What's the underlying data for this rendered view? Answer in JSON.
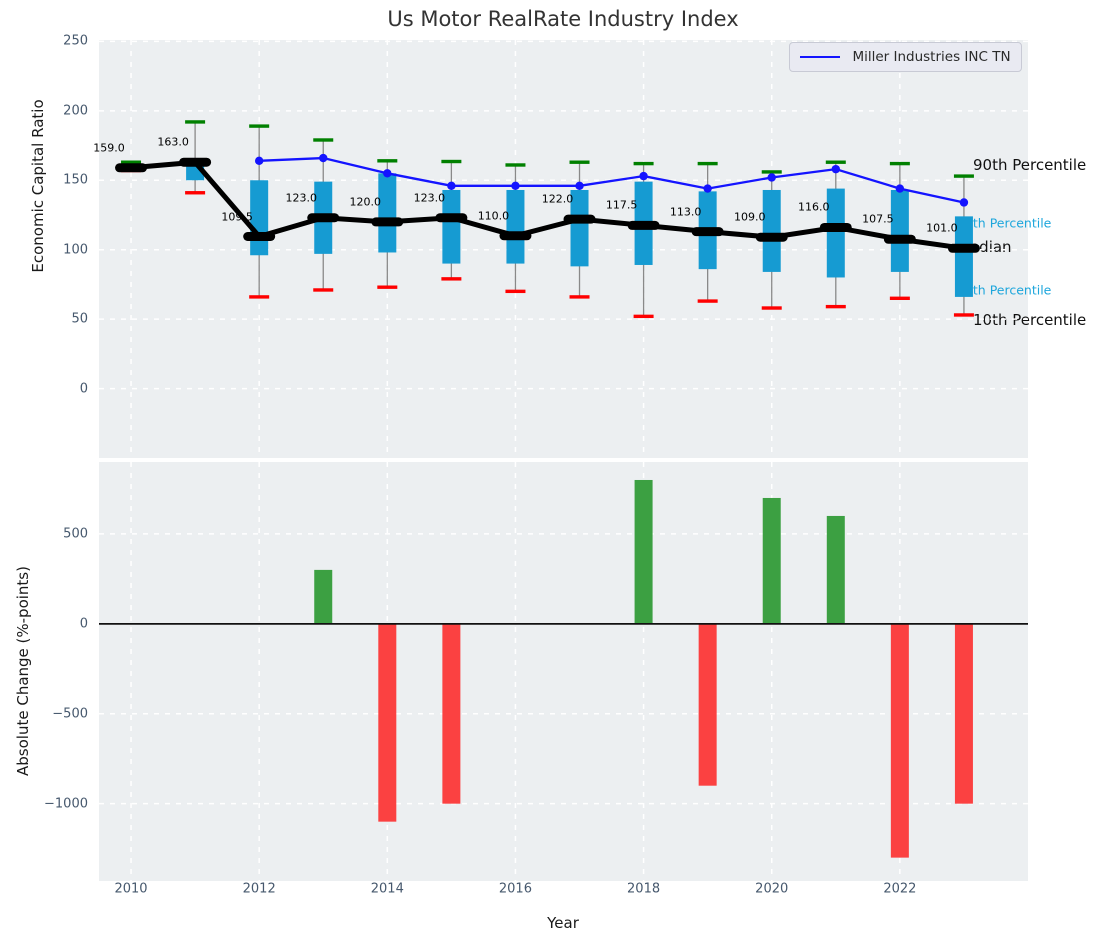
{
  "title": "Us Motor RealRate Industry Index",
  "legend": {
    "label": "Miller Industries INC TN"
  },
  "colors": {
    "plot_bg": "#eceff1",
    "grid": "#ffffff",
    "tick_label": "#46586d",
    "title_text": "#333333",
    "axis_label_text": "#1a1a1a",
    "box_fill": "#169bd2",
    "whisker": "#898989",
    "cap_90th": "#008000",
    "cap_10th": "#ff0000",
    "median_line": "#000000",
    "company_line": "#1414ff",
    "bar_positive": "#3ca042",
    "bar_negative": "#fb4141",
    "accent_label": "#1da6dc",
    "dark_label": "#111111",
    "zero_line": "#111111",
    "legend_bg": "#e9eaf2",
    "legend_border": "#c8cad5"
  },
  "chart_data": [
    {
      "type": "boxplot",
      "title": "Us Motor RealRate Industry Index",
      "ylabel": "Economic Capital Ratio",
      "years": [
        2010,
        2011,
        2012,
        2013,
        2014,
        2015,
        2016,
        2017,
        2018,
        2019,
        2020,
        2021,
        2022,
        2023
      ],
      "p10": [
        157,
        141,
        66,
        71,
        73,
        79,
        70,
        66,
        52,
        63,
        58,
        59,
        65,
        53
      ],
      "p25": [
        157.5,
        150,
        96,
        97,
        98,
        90,
        90,
        88,
        89,
        86,
        84,
        80,
        84,
        66
      ],
      "median": [
        159.0,
        163.0,
        109.5,
        123.0,
        120.0,
        123.0,
        110.0,
        122.0,
        117.5,
        113.0,
        109.0,
        116.0,
        107.5,
        101.0
      ],
      "p75": [
        160.5,
        164,
        150,
        149,
        155,
        143,
        143,
        143,
        149,
        142,
        143,
        144,
        143,
        124
      ],
      "p90": [
        163,
        192,
        189,
        179,
        164,
        163.5,
        161,
        163,
        162,
        162,
        156,
        163,
        162,
        153
      ],
      "median_labels": [
        "159.0",
        "163.0",
        "109.5",
        "123.0",
        "120.0",
        "123.0",
        "110.0",
        "122.0",
        "117.5",
        "113.0",
        "109.0",
        "116.0",
        "107.5",
        "101.0"
      ],
      "company": {
        "name": "Miller Industries INC TN",
        "years": [
          2012,
          2013,
          2014,
          2015,
          2016,
          2017,
          2018,
          2019,
          2020,
          2021,
          2022,
          2023
        ],
        "values": [
          164,
          166,
          155,
          146,
          146,
          146,
          153,
          144,
          152,
          158,
          144,
          134
        ]
      },
      "ylim": [
        -50,
        251
      ],
      "xlim": [
        2009.5,
        2024
      ],
      "ytick_values": [
        0,
        50,
        100,
        150,
        200,
        250
      ],
      "ytick_labels": [
        "0",
        "50",
        "100",
        "150",
        "200",
        "250"
      ],
      "xtick_values": [
        2010,
        2012,
        2014,
        2016,
        2018,
        2020,
        2022
      ],
      "grid": true,
      "legend_position": "upper right",
      "annotations": [
        {
          "text": "90th Percentile",
          "value": 161,
          "style": "dark",
          "align": "outer"
        },
        {
          "text": "75th Percentile",
          "value": 119.5,
          "style": "accent",
          "align": "inner"
        },
        {
          "text": "Median",
          "value": 102,
          "style": "dark",
          "align": "inner"
        },
        {
          "text": "25th Percentile",
          "value": 71,
          "style": "accent",
          "align": "inner"
        },
        {
          "text": "10th Percentile",
          "value": 49.5,
          "style": "dark",
          "align": "outer"
        }
      ]
    },
    {
      "type": "bar",
      "ylabel": "Absolute Change (%-points)",
      "xlabel": "Year",
      "years": [
        2010,
        2011,
        2012,
        2013,
        2014,
        2015,
        2016,
        2017,
        2018,
        2019,
        2020,
        2021,
        2022,
        2023
      ],
      "values": [
        0,
        0,
        0,
        300,
        -1100,
        -1000,
        0,
        0,
        800,
        -900,
        700,
        600,
        -1300,
        -1000
      ],
      "ylim": [
        -1430,
        900
      ],
      "ytick_values": [
        500,
        0,
        -500,
        -1000
      ],
      "ytick_labels": [
        "500",
        "0",
        "−500",
        "−1000"
      ],
      "xtick_values": [
        2010,
        2012,
        2014,
        2016,
        2018,
        2020,
        2022
      ],
      "xtick_labels": [
        "2010",
        "2012",
        "2014",
        "2016",
        "2018",
        "2020",
        "2022"
      ],
      "grid": true
    }
  ]
}
